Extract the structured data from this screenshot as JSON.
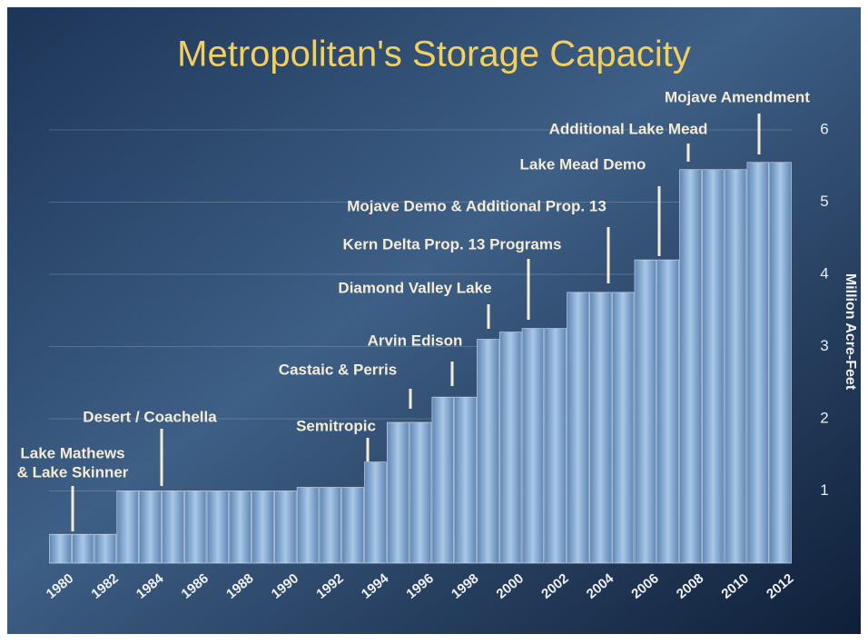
{
  "chart_data": {
    "type": "bar",
    "title": "Metropolitan's Storage Capacity",
    "y_axis_label": "Million Acre-Feet",
    "categories": [
      "1980",
      null,
      "1982",
      null,
      "1984",
      null,
      "1986",
      null,
      "1988",
      null,
      "1990",
      null,
      "1992",
      null,
      "1994",
      null,
      "1996",
      null,
      "1998",
      null,
      "2000",
      null,
      "2002",
      null,
      "2004",
      null,
      "2006",
      null,
      "2008",
      null,
      "2010",
      null,
      "2012"
    ],
    "values": [
      0.4,
      0.4,
      0.4,
      1.0,
      1.0,
      1.0,
      1.0,
      1.0,
      1.0,
      1.0,
      1.0,
      1.05,
      1.05,
      1.05,
      1.4,
      1.95,
      1.95,
      2.3,
      2.3,
      3.1,
      3.2,
      3.25,
      3.25,
      3.75,
      3.75,
      3.75,
      4.2,
      4.2,
      5.45,
      5.45,
      5.45,
      5.55,
      5.55
    ],
    "color": "#8fb3d9",
    "ylim": [
      0,
      6
    ],
    "yticks": [
      1,
      2,
      3,
      4,
      5,
      6
    ],
    "grid": true,
    "annotations": [
      [
        "Lake Mathews",
        "& Lake Skinner"
      ],
      [
        "Desert / Coachella"
      ],
      [
        "Semitropic"
      ],
      [
        "Castaic & Perris"
      ],
      [
        "Arvin Edison"
      ],
      [
        "Diamond Valley Lake"
      ],
      [
        "Kern Delta Prop. 13 Programs"
      ],
      [
        "Mojave Demo & Additional Prop. 13"
      ],
      [
        "Lake Mead Demo"
      ],
      [
        "Additional Lake Mead"
      ],
      [
        "Mojave Amendment"
      ]
    ]
  }
}
